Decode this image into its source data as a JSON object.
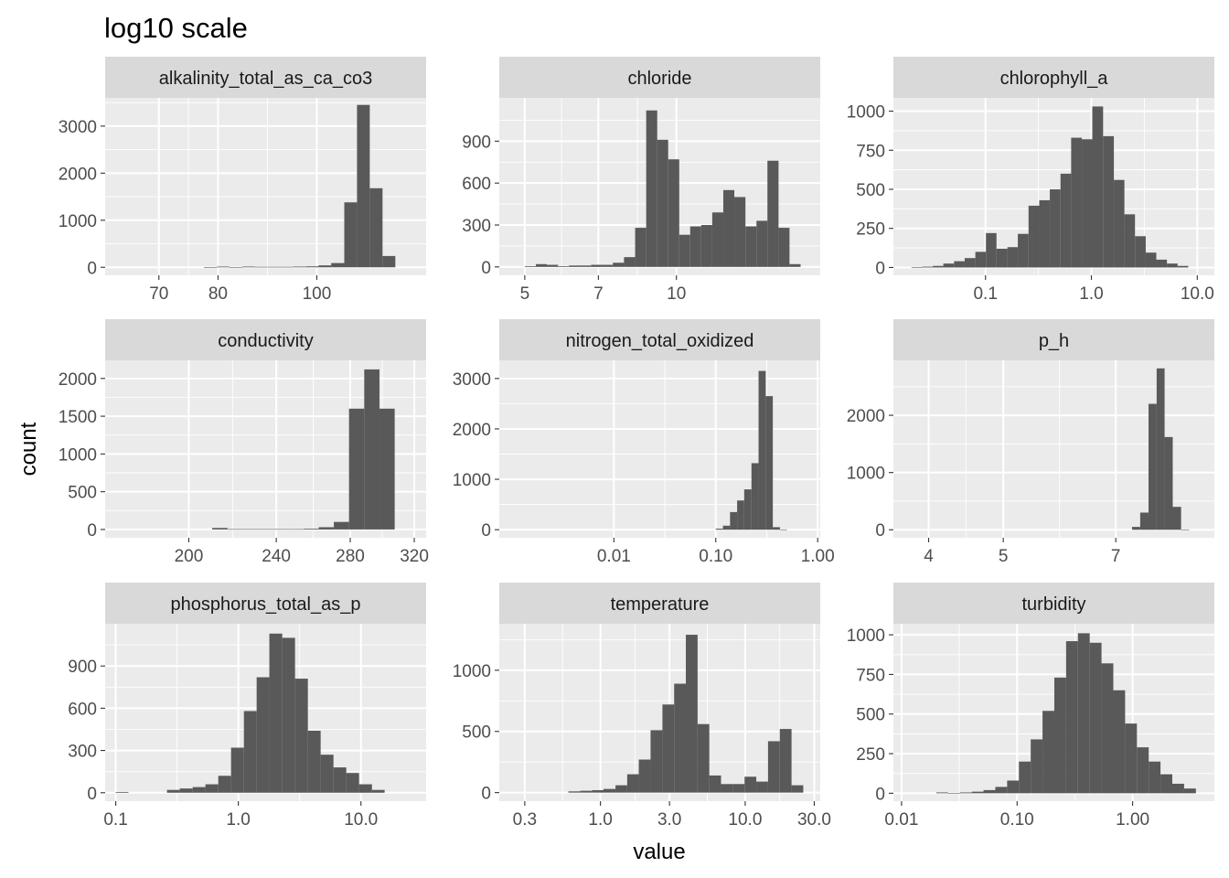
{
  "title": "log10 scale",
  "xlabel": "value",
  "ylabel": "count",
  "colors": {
    "panel_bg": "#ebebeb",
    "strip_bg": "#d9d9d9",
    "grid_major": "#ffffff",
    "bar_fill": "#595959",
    "tick_text": "#4d4d4d"
  },
  "chart_data": [
    {
      "type": "bar",
      "facet": "alkalinity_total_as_ca_co3",
      "x_scale": "log10",
      "xlim": [
        62,
        128
      ],
      "ylim": [
        -170,
        3600
      ],
      "x_ticks": [
        70,
        80,
        100
      ],
      "x_tick_labels": [
        "70",
        "80",
        "100"
      ],
      "y_ticks": [
        0,
        1000,
        2000,
        3000
      ],
      "y_tick_labels": [
        "0",
        "1000",
        "2000",
        "3000"
      ],
      "bin_edges": [
        65.2,
        67.1,
        69.1,
        71.1,
        73.2,
        75.3,
        77.5,
        79.8,
        82.1,
        84.5,
        87.0,
        89.5,
        92.1,
        94.8,
        97.6,
        100.4,
        103.3,
        106.4,
        109.5,
        112.7,
        116.0,
        119.4
      ],
      "counts": [
        0,
        0,
        0,
        0,
        0,
        0,
        5,
        15,
        5,
        15,
        10,
        10,
        10,
        15,
        20,
        40,
        90,
        1380,
        3450,
        1680,
        240,
        15
      ]
    },
    {
      "type": "bar",
      "facet": "chloride",
      "x_scale": "log10",
      "xlim": [
        4.45,
        19.3
      ],
      "ylim": [
        -60,
        1210
      ],
      "x_ticks": [
        5,
        7,
        10
      ],
      "x_tick_labels": [
        "5",
        "7",
        "10"
      ],
      "y_ticks": [
        0,
        300,
        600,
        900
      ],
      "y_tick_labels": [
        "0",
        "300",
        "600",
        "900"
      ],
      "bin_edges": [
        5.0,
        5.26,
        5.53,
        5.82,
        6.12,
        6.43,
        6.77,
        7.12,
        7.48,
        7.87,
        8.28,
        8.71,
        9.16,
        9.63,
        10.13,
        10.65,
        11.2,
        11.78,
        12.39,
        13.03,
        13.71,
        14.42,
        15.16,
        15.95,
        16.77,
        17.64
      ],
      "counts": [
        5,
        20,
        15,
        5,
        10,
        10,
        15,
        15,
        30,
        70,
        280,
        1120,
        910,
        770,
        230,
        290,
        300,
        390,
        550,
        500,
        290,
        330,
        760,
        280,
        20
      ]
    },
    {
      "type": "bar",
      "facet": "chlorophyll_a",
      "x_scale": "log10",
      "xlim": [
        0.0135,
        14.5
      ],
      "ylim": [
        -50,
        1085
      ],
      "x_ticks": [
        0.1,
        1,
        10
      ],
      "x_tick_labels": [
        "0.1",
        "1.0",
        "10.0"
      ],
      "y_ticks": [
        0,
        250,
        500,
        750,
        1000
      ],
      "y_tick_labels": [
        "0",
        "250",
        "500",
        "750",
        "1000"
      ],
      "bin_edges": [
        0.02,
        0.0252,
        0.0318,
        0.04,
        0.0505,
        0.0636,
        0.0802,
        0.101,
        0.127,
        0.161,
        0.202,
        0.255,
        0.322,
        0.405,
        0.511,
        0.644,
        0.812,
        1.02,
        1.29,
        1.63,
        2.05,
        2.58,
        3.26,
        4.1,
        5.17,
        6.52,
        8.22
      ],
      "counts": [
        2,
        5,
        10,
        25,
        40,
        60,
        100,
        220,
        120,
        130,
        215,
        395,
        430,
        500,
        600,
        830,
        820,
        1030,
        840,
        560,
        340,
        200,
        95,
        50,
        25,
        10
      ]
    },
    {
      "type": "bar",
      "facet": "conductivity",
      "x_scale": "log10",
      "xlim": [
        168,
        328
      ],
      "ylim": [
        -110,
        2240
      ],
      "x_ticks": [
        200,
        240,
        280,
        320
      ],
      "x_tick_labels": [
        "200",
        "240",
        "280",
        "320"
      ],
      "y_ticks": [
        0,
        500,
        1000,
        1500,
        2000
      ],
      "y_tick_labels": [
        "0",
        "500",
        "1000",
        "1500",
        "2000"
      ],
      "bin_edges": [
        210.0,
        216.8,
        223.8,
        231.0,
        238.4,
        246.1,
        254.0,
        262.2,
        270.6,
        279.3,
        288.3,
        297.6,
        307.2
      ],
      "counts": [
        20,
        5,
        5,
        5,
        5,
        5,
        10,
        30,
        100,
        1600,
        2120,
        1600,
        150
      ]
    },
    {
      "type": "bar",
      "facet": "nitrogen_total_oxidized",
      "x_scale": "log10",
      "xlim": [
        0.00075,
        1.06
      ],
      "ylim": [
        -160,
        3360
      ],
      "x_ticks": [
        0.01,
        0.1,
        1
      ],
      "x_tick_labels": [
        "0.01",
        "0.10",
        "1.00"
      ],
      "y_ticks": [
        0,
        1000,
        2000,
        3000
      ],
      "y_tick_labels": [
        "0",
        "1000",
        "2000",
        "3000"
      ],
      "bin_edges": [
        0.1,
        0.1175,
        0.138,
        0.162,
        0.19,
        0.224,
        0.263,
        0.309,
        0.363,
        0.426,
        0.5
      ],
      "counts": [
        20,
        80,
        350,
        580,
        800,
        1320,
        3150,
        2650,
        50,
        5
      ]
    },
    {
      "type": "bar",
      "facet": "p_h",
      "x_scale": "log10",
      "xlim": [
        3.6,
        9.4
      ],
      "ylim": [
        -140,
        2960
      ],
      "x_ticks": [
        4,
        5,
        7
      ],
      "x_tick_labels": [
        "4",
        "5",
        "7"
      ],
      "y_ticks": [
        0,
        1000,
        2000
      ],
      "y_tick_labels": [
        "0",
        "1000",
        "2000"
      ],
      "bin_edges": [
        7.35,
        7.53,
        7.72,
        7.91,
        8.1,
        8.3,
        8.51,
        8.72
      ],
      "counts": [
        50,
        300,
        2200,
        2820,
        1620,
        400,
        5
      ]
    },
    {
      "type": "bar",
      "facet": "phosphorus_total_as_p",
      "x_scale": "log10",
      "xlim": [
        0.082,
        34
      ],
      "ylim": [
        -60,
        1200
      ],
      "x_ticks": [
        0.1,
        1,
        10
      ],
      "x_tick_labels": [
        "0.1",
        "1.0",
        "10.0"
      ],
      "y_ticks": [
        0,
        300,
        600,
        900
      ],
      "y_tick_labels": [
        "0",
        "300",
        "600",
        "900"
      ],
      "bin_edges": [
        0.1,
        0.127,
        0.162,
        0.206,
        0.262,
        0.333,
        0.424,
        0.539,
        0.686,
        0.872,
        1.11,
        1.41,
        1.79,
        2.28,
        2.9,
        3.69,
        4.69,
        5.97,
        7.59,
        9.65,
        12.3,
        15.6
      ],
      "counts": [
        5,
        0,
        0,
        0,
        20,
        30,
        40,
        60,
        120,
        320,
        580,
        820,
        1130,
        1100,
        810,
        440,
        270,
        180,
        140,
        60,
        20
      ]
    },
    {
      "type": "bar",
      "facet": "temperature",
      "x_scale": "log10",
      "xlim": [
        0.2,
        33
      ],
      "ylim": [
        -70,
        1380
      ],
      "x_ticks": [
        0.3,
        1,
        3,
        10,
        30
      ],
      "x_tick_labels": [
        "0.3",
        "1.0",
        "3.0",
        "10.0",
        "30.0"
      ],
      "y_ticks": [
        0,
        500,
        1000
      ],
      "y_tick_labels": [
        "0",
        "500",
        "1000"
      ],
      "bin_edges": [
        0.6,
        0.723,
        0.872,
        1.05,
        1.27,
        1.53,
        1.84,
        2.22,
        2.68,
        3.23,
        3.89,
        4.69,
        5.65,
        6.81,
        8.21,
        9.9,
        11.93,
        14.38,
        17.34,
        20.9,
        25.19
      ],
      "counts": [
        10,
        15,
        20,
        30,
        60,
        150,
        270,
        510,
        720,
        890,
        1290,
        560,
        140,
        70,
        70,
        130,
        90,
        420,
        520,
        60
      ]
    },
    {
      "type": "bar",
      "facet": "turbidity",
      "x_scale": "log10",
      "xlim": [
        0.0085,
        5.1
      ],
      "ylim": [
        -50,
        1070
      ],
      "x_ticks": [
        0.01,
        0.1,
        1
      ],
      "x_tick_labels": [
        "0.01",
        "0.10",
        "1.00"
      ],
      "y_ticks": [
        0,
        250,
        500,
        750,
        1000
      ],
      "y_tick_labels": [
        "0",
        "250",
        "500",
        "750",
        "1000"
      ],
      "bin_edges": [
        0.02,
        0.0253,
        0.032,
        0.0405,
        0.0512,
        0.0648,
        0.082,
        0.1037,
        0.1312,
        0.166,
        0.21,
        0.2657,
        0.3361,
        0.4252,
        0.5379,
        0.6805,
        0.8609,
        1.089,
        1.378,
        1.743,
        2.205,
        2.79,
        3.53
      ],
      "counts": [
        5,
        2,
        5,
        10,
        20,
        40,
        80,
        200,
        340,
        520,
        730,
        960,
        1010,
        950,
        820,
        650,
        440,
        290,
        200,
        120,
        60,
        30
      ]
    }
  ]
}
